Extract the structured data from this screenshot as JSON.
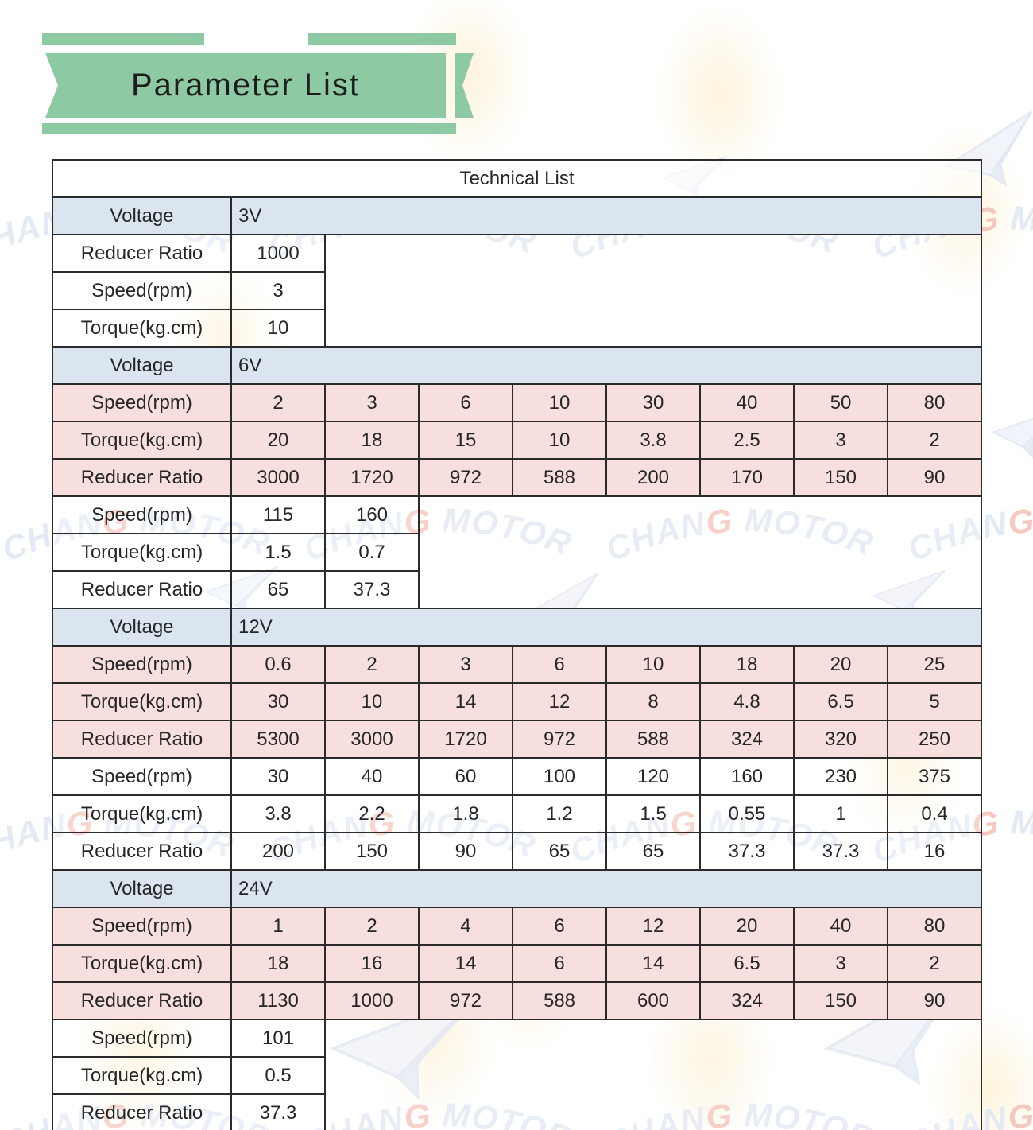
{
  "banner": {
    "title": "Parameter List"
  },
  "watermark": {
    "text": "CHANG MOTOR"
  },
  "colors": {
    "banner_green": "#8dc9a3",
    "row_blue": "#dbe5f0",
    "row_pink": "#f6dfdc",
    "border_dark": "#2b2b2b",
    "watermark_blue": "#e2e8f3",
    "watermark_red": "#f4c3ba",
    "blob_orange": "#fdeecb"
  },
  "table": {
    "title": "Technical List",
    "voltage_label": "Voltage",
    "total_value_cols": 8,
    "sections": [
      {
        "voltage": "3V",
        "blocks": [
          {
            "style": "white",
            "rows": [
              {
                "label": "Reducer Ratio",
                "values": [
                  "1000"
                ]
              },
              {
                "label": "Speed(rpm)",
                "values": [
                  "3"
                ]
              },
              {
                "label": "Torque(kg.cm)",
                "values": [
                  "10"
                ]
              }
            ]
          }
        ]
      },
      {
        "voltage": "6V",
        "blocks": [
          {
            "style": "pink",
            "rows": [
              {
                "label": "Speed(rpm)",
                "values": [
                  "2",
                  "3",
                  "6",
                  "10",
                  "30",
                  "40",
                  "50",
                  "80"
                ]
              },
              {
                "label": "Torque(kg.cm)",
                "values": [
                  "20",
                  "18",
                  "15",
                  "10",
                  "3.8",
                  "2.5",
                  "3",
                  "2"
                ]
              },
              {
                "label": "Reducer Ratio",
                "values": [
                  "3000",
                  "1720",
                  "972",
                  "588",
                  "200",
                  "170",
                  "150",
                  "90"
                ]
              }
            ]
          },
          {
            "style": "white",
            "rows": [
              {
                "label": "Speed(rpm)",
                "values": [
                  "115",
                  "160"
                ]
              },
              {
                "label": "Torque(kg.cm)",
                "values": [
                  "1.5",
                  "0.7"
                ]
              },
              {
                "label": "Reducer Ratio",
                "values": [
                  "65",
                  "37.3"
                ]
              }
            ]
          }
        ]
      },
      {
        "voltage": "12V",
        "blocks": [
          {
            "style": "pink",
            "rows": [
              {
                "label": "Speed(rpm)",
                "values": [
                  "0.6",
                  "2",
                  "3",
                  "6",
                  "10",
                  "18",
                  "20",
                  "25"
                ]
              },
              {
                "label": "Torque(kg.cm)",
                "values": [
                  "30",
                  "10",
                  "14",
                  "12",
                  "8",
                  "4.8",
                  "6.5",
                  "5"
                ]
              },
              {
                "label": "Reducer Ratio",
                "values": [
                  "5300",
                  "3000",
                  "1720",
                  "972",
                  "588",
                  "324",
                  "320",
                  "250"
                ]
              }
            ]
          },
          {
            "style": "white",
            "rows": [
              {
                "label": "Speed(rpm)",
                "values": [
                  "30",
                  "40",
                  "60",
                  "100",
                  "120",
                  "160",
                  "230",
                  "375"
                ]
              },
              {
                "label": "Torque(kg.cm)",
                "values": [
                  "3.8",
                  "2.2",
                  "1.8",
                  "1.2",
                  "1.5",
                  "0.55",
                  "1",
                  "0.4"
                ]
              },
              {
                "label": "Reducer Ratio",
                "values": [
                  "200",
                  "150",
                  "90",
                  "65",
                  "65",
                  "37.3",
                  "37.3",
                  "16"
                ]
              }
            ]
          }
        ]
      },
      {
        "voltage": "24V",
        "blocks": [
          {
            "style": "pink",
            "rows": [
              {
                "label": "Speed(rpm)",
                "values": [
                  "1",
                  "2",
                  "4",
                  "6",
                  "12",
                  "20",
                  "40",
                  "80"
                ]
              },
              {
                "label": "Torque(kg.cm)",
                "values": [
                  "18",
                  "16",
                  "14",
                  "6",
                  "14",
                  "6.5",
                  "3",
                  "2"
                ]
              },
              {
                "label": "Reducer Ratio",
                "values": [
                  "1130",
                  "1000",
                  "972",
                  "588",
                  "600",
                  "324",
                  "150",
                  "90"
                ]
              }
            ]
          },
          {
            "style": "white",
            "rows": [
              {
                "label": "Speed(rpm)",
                "values": [
                  "101"
                ]
              },
              {
                "label": "Torque(kg.cm)",
                "values": [
                  "0.5"
                ]
              },
              {
                "label": "Reducer Ratio",
                "values": [
                  "37.3"
                ]
              }
            ]
          }
        ]
      }
    ]
  }
}
